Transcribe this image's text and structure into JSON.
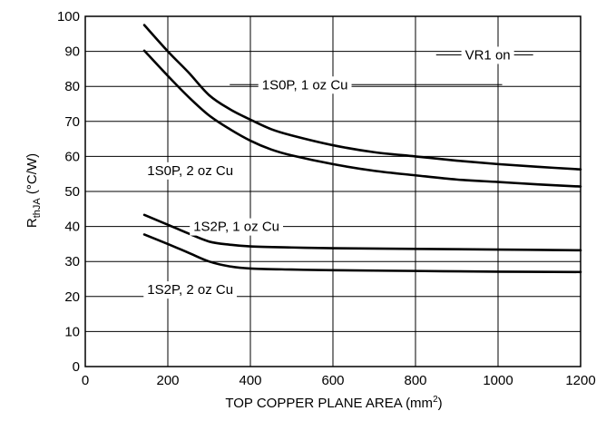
{
  "chart_data": {
    "type": "line",
    "xlabel": "TOP COPPER PLANE AREA (mm",
    "xlabel_sup": "2",
    "xlabel_end": ")",
    "ylabel_main": "R",
    "ylabel_sub": "thJA",
    "ylabel_unit": " (°C/W)",
    "xlim": [
      0,
      1200
    ],
    "ylim": [
      0,
      100
    ],
    "x_ticks": [
      0,
      200,
      400,
      600,
      800,
      1000,
      1200
    ],
    "y_ticks": [
      0,
      10,
      20,
      30,
      40,
      50,
      60,
      70,
      80,
      90,
      100
    ],
    "grid": true,
    "series": [
      {
        "name": "1S0P, 1 oz Cu",
        "x": [
          143,
          200,
          250,
          300,
          350,
          400,
          450,
          500,
          600,
          700,
          800,
          900,
          1000,
          1100,
          1200
        ],
        "y": [
          97.5,
          90,
          84,
          77.5,
          73.5,
          70.5,
          67.8,
          66,
          63.2,
          61.2,
          60,
          58.8,
          57.8,
          57,
          56.3
        ]
      },
      {
        "name": "1S0P, 2 oz Cu",
        "x": [
          143,
          200,
          250,
          300,
          350,
          400,
          450,
          500,
          600,
          700,
          800,
          900,
          1000,
          1100,
          1200
        ],
        "y": [
          90.2,
          83,
          77,
          71.7,
          67.8,
          64.5,
          62,
          60.3,
          57.8,
          55.9,
          54.6,
          53.4,
          52.7,
          52,
          51.4
        ]
      },
      {
        "name": "1S2P, 1 oz Cu",
        "x": [
          143,
          200,
          250,
          300,
          350,
          400,
          500,
          600,
          800,
          1000,
          1200
        ],
        "y": [
          43.3,
          40.5,
          38,
          35.7,
          34.8,
          34.3,
          34,
          33.8,
          33.6,
          33.4,
          33.2
        ]
      },
      {
        "name": "1S2P, 2 oz Cu",
        "x": [
          143,
          200,
          250,
          300,
          350,
          400,
          500,
          600,
          800,
          1000,
          1200
        ],
        "y": [
          37.7,
          35,
          32.5,
          30,
          28.6,
          28,
          27.7,
          27.5,
          27.3,
          27.1,
          27
        ]
      }
    ],
    "annotations": [
      {
        "text": "VR1 on",
        "x": 920,
        "y": 89,
        "line_from": 850,
        "line_to": 1085
      },
      {
        "text": "1S0P, 1 oz Cu",
        "x": 428,
        "y": 80.5,
        "line_from": 350,
        "line_to": 1010
      },
      {
        "text": "1S0P, 2 oz Cu",
        "x": 150,
        "y": 56
      },
      {
        "text": "1S2P, 1 oz Cu",
        "x": 262,
        "y": 40
      },
      {
        "text": "1S2P, 2 oz Cu",
        "x": 150,
        "y": 22
      }
    ]
  }
}
